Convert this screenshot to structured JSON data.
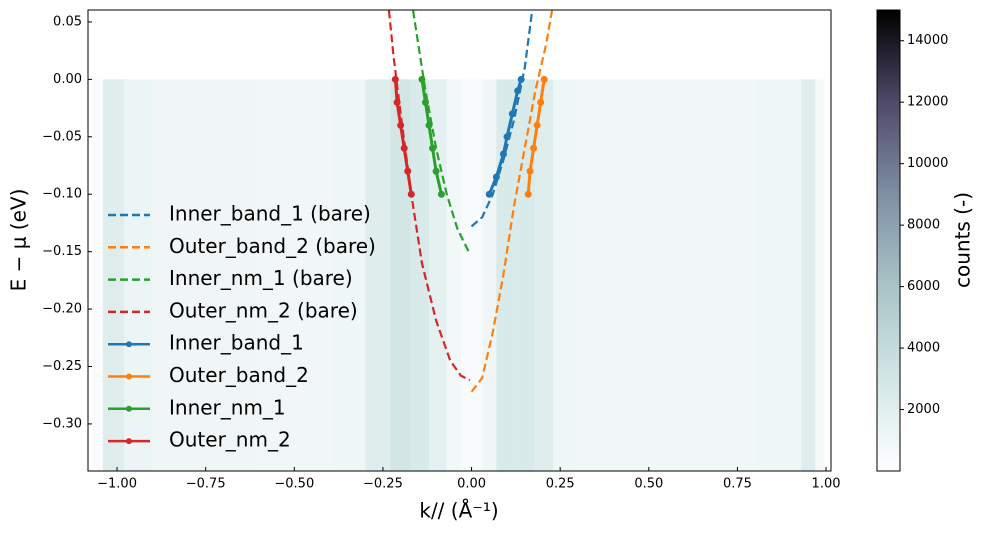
{
  "chart_data": {
    "type": "line",
    "x_label": "k// (Å⁻¹)",
    "y_label": "E − μ (eV)",
    "xlim": [
      -1.082,
      1.014
    ],
    "ylim": [
      -0.341,
      0.0604
    ],
    "xticks": [
      {
        "value": -1,
        "label": "−1.00"
      },
      {
        "value": -0.75,
        "label": "−0.75"
      },
      {
        "value": -0.5,
        "label": "−0.50"
      },
      {
        "value": -0.25,
        "label": "−0.25"
      },
      {
        "value": 0,
        "label": "0.00"
      },
      0.25,
      {
        "value": 0.5,
        "label": "0.50"
      },
      0.75,
      {
        "value": 1,
        "label": "1.00"
      }
    ],
    "yticks": [
      0.05,
      {
        "value": 0,
        "label": "0.00"
      },
      {
        "value": -0.05,
        "label": "−0.05"
      },
      {
        "value": -0.1,
        "label": "−0.10"
      },
      {
        "value": -0.15,
        "label": "−0.15"
      },
      {
        "value": -0.2,
        "label": "−0.20"
      },
      {
        "value": -0.25,
        "label": "−0.25"
      },
      {
        "value": -0.3,
        "label": "−0.30"
      }
    ],
    "heatmap": {
      "bins": [
        -1.07,
        -1.04,
        -0.98,
        -0.9,
        -0.8,
        -0.6,
        -0.4,
        -0.3,
        -0.23,
        -0.17,
        -0.12,
        -0.07,
        -0.03,
        0.03,
        0.07,
        0.12,
        0.18,
        0.23,
        0.3,
        0.5,
        0.8,
        0.93,
        0.97,
        0.995
      ],
      "counts": [
        500,
        2500,
        1500,
        1200,
        1200,
        1100,
        1300,
        2500,
        3500,
        3000,
        2000,
        1000,
        600,
        1200,
        3000,
        3000,
        2500,
        1300,
        1100,
        1100,
        1300,
        2500,
        800
      ],
      "energy": [
        -0.341,
        0
      ]
    },
    "colorbar": {
      "label": "counts (-)",
      "clim": [
        0,
        15000
      ],
      "ticks": [
        2000,
        4000,
        6000,
        8000,
        10000,
        12000,
        14000
      ],
      "colormap": [
        "#ffffff",
        "#d2e6e6",
        "#a9c4c6",
        "#7f8fa4",
        "#4f4a6a",
        "#000000"
      ]
    },
    "series": [
      {
        "name": "Inner_band_1 (bare)",
        "color": "#1f77b4",
        "style": "dashed",
        "x": [
          0.0,
          0.03,
          0.06,
          0.09,
          0.12,
          0.15,
          0.171
        ],
        "values": [
          -0.128,
          -0.12,
          -0.1,
          -0.07,
          -0.035,
          0.01,
          0.06
        ]
      },
      {
        "name": "Outer_band_2 (bare)",
        "color": "#ff7f0e",
        "style": "dashed",
        "x": [
          0.0,
          0.03,
          0.06,
          0.09,
          0.12,
          0.15,
          0.18,
          0.21,
          0.227
        ],
        "values": [
          -0.272,
          -0.26,
          -0.22,
          -0.17,
          -0.11,
          -0.06,
          -0.01,
          0.03,
          0.06
        ]
      },
      {
        "name": "Inner_nm_1 (bare)",
        "color": "#2ca02c",
        "style": "dashed",
        "x": [
          -0.165,
          -0.15,
          -0.13,
          -0.1,
          -0.07,
          -0.04,
          -0.005
        ],
        "values": [
          0.06,
          0.03,
          -0.01,
          -0.06,
          -0.1,
          -0.13,
          -0.152
        ]
      },
      {
        "name": "Outer_nm_2 (bare)",
        "color": "#d62728",
        "style": "dashed",
        "x": [
          -0.233,
          -0.22,
          -0.2,
          -0.17,
          -0.14,
          -0.1,
          -0.06,
          -0.03,
          -0.005
        ],
        "values": [
          0.06,
          0.02,
          -0.03,
          -0.1,
          -0.16,
          -0.21,
          -0.245,
          -0.258,
          -0.262
        ]
      },
      {
        "name": "Inner_band_1",
        "color": "#1f77b4",
        "style": "markers",
        "x": [
          0.05,
          0.07,
          0.09,
          0.1,
          0.115,
          0.13,
          0.14
        ],
        "values": [
          -0.1,
          -0.085,
          -0.065,
          -0.05,
          -0.03,
          -0.01,
          0.0
        ]
      },
      {
        "name": "Outer_band_2",
        "color": "#ff7f0e",
        "style": "markers",
        "x": [
          0.16,
          0.165,
          0.175,
          0.185,
          0.195,
          0.205
        ],
        "values": [
          -0.1,
          -0.08,
          -0.06,
          -0.04,
          -0.02,
          0.0
        ]
      },
      {
        "name": "Inner_nm_1",
        "color": "#2ca02c",
        "style": "markers",
        "x": [
          -0.14,
          -0.13,
          -0.12,
          -0.11,
          -0.1,
          -0.085
        ],
        "values": [
          0.0,
          -0.02,
          -0.04,
          -0.06,
          -0.08,
          -0.1
        ]
      },
      {
        "name": "Outer_nm_2",
        "color": "#d62728",
        "style": "markers",
        "x": [
          -0.215,
          -0.21,
          -0.2,
          -0.19,
          -0.18,
          -0.17
        ],
        "values": [
          0.0,
          -0.02,
          -0.04,
          -0.06,
          -0.08,
          -0.1
        ]
      }
    ]
  }
}
